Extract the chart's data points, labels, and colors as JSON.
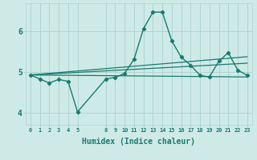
{
  "xlabel": "Humidex (Indice chaleur)",
  "bg_color": "#ceeae7",
  "grid_color": "#aed4d0",
  "line_color": "#1a7a6e",
  "x_ticks": [
    0,
    1,
    2,
    3,
    4,
    5,
    8,
    9,
    10,
    11,
    12,
    13,
    14,
    15,
    16,
    17,
    18,
    19,
    20,
    21,
    22,
    23
  ],
  "ylim": [
    3.7,
    6.7
  ],
  "yticks": [
    4,
    5,
    6
  ],
  "series": [
    {
      "x": [
        0,
        1,
        2,
        3,
        4,
        5,
        8,
        9,
        10,
        11,
        12,
        13,
        14,
        15,
        16,
        17,
        18,
        19,
        20,
        21,
        22,
        23
      ],
      "y": [
        4.93,
        4.83,
        4.73,
        4.82,
        4.77,
        4.02,
        4.83,
        4.87,
        4.97,
        5.32,
        6.07,
        6.48,
        6.48,
        5.77,
        5.37,
        5.17,
        4.92,
        4.88,
        5.27,
        5.48,
        5.05,
        4.92
      ],
      "marker": "D",
      "markersize": 2.2,
      "linewidth": 1.0
    },
    {
      "x": [
        0,
        23
      ],
      "y": [
        4.93,
        4.88
      ],
      "linewidth": 0.9
    },
    {
      "x": [
        0,
        23
      ],
      "y": [
        4.93,
        5.22
      ],
      "linewidth": 0.9
    },
    {
      "x": [
        0,
        23
      ],
      "y": [
        4.93,
        5.38
      ],
      "linewidth": 0.9
    }
  ]
}
